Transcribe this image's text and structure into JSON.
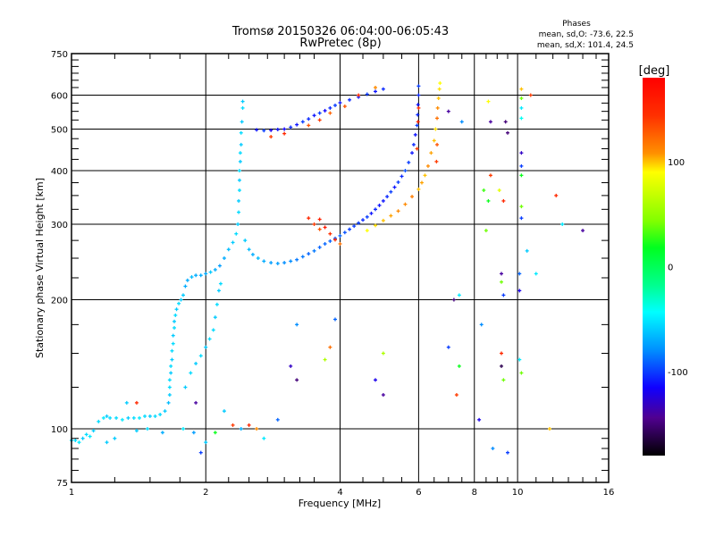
{
  "chart_data": {
    "type": "scatter",
    "title": "Tromsø 20150326 06:04:00-06:05:43",
    "subtitle": "RwPretec (8p)",
    "stats": {
      "heading": "Phases",
      "o_line": "mean, sd,O: -73.6, 22.5",
      "x_line": "mean, sd,X: 101.4, 24.5"
    },
    "xlabel": "Frequency [MHz]",
    "ylabel": "Stationary phase Virtual Height [km]",
    "xscale": "log",
    "yscale": "log",
    "xlim": [
      1,
      16
    ],
    "ylim": [
      75,
      750
    ],
    "xticks": [
      1,
      2,
      4,
      6,
      8,
      10,
      16
    ],
    "xtick_labels": [
      "1",
      "2",
      "4",
      "6",
      "8",
      "10",
      "16"
    ],
    "yticks": [
      75,
      100,
      200,
      300,
      400,
      500,
      600,
      750
    ],
    "ytick_labels": [
      "75",
      "100",
      "200",
      "300",
      "400",
      "500",
      "600",
      "750"
    ],
    "x_gridlines": [
      2,
      4,
      6,
      8,
      10
    ],
    "y_gridlines": [
      100,
      200,
      300,
      400,
      500,
      600
    ],
    "grid": true,
    "colorbar": {
      "label": "[deg]",
      "range": [
        -180,
        180
      ],
      "ticks": [
        100,
        0,
        -100
      ],
      "tick_labels": [
        "100",
        "0",
        "-100"
      ],
      "colormap": "rainbow"
    },
    "point_format": [
      "frequency_MHz",
      "height_km",
      "phase_deg"
    ],
    "points": [
      [
        1.0,
        94,
        -60
      ],
      [
        1.02,
        94,
        -55
      ],
      [
        1.04,
        93,
        -50
      ],
      [
        1.06,
        95,
        -60
      ],
      [
        1.08,
        97,
        -55
      ],
      [
        1.1,
        96,
        -50
      ],
      [
        1.12,
        99,
        -60
      ],
      [
        1.15,
        104,
        -55
      ],
      [
        1.18,
        106,
        -50
      ],
      [
        1.2,
        107,
        -60
      ],
      [
        1.22,
        106,
        -55
      ],
      [
        1.26,
        106,
        -55
      ],
      [
        1.3,
        105,
        -50
      ],
      [
        1.34,
        106,
        -60
      ],
      [
        1.38,
        106,
        -55
      ],
      [
        1.42,
        106,
        -50
      ],
      [
        1.46,
        107,
        -55
      ],
      [
        1.5,
        107,
        -60
      ],
      [
        1.54,
        107,
        -55
      ],
      [
        1.58,
        108,
        -55
      ],
      [
        1.62,
        110,
        -60
      ],
      [
        1.65,
        115,
        -65
      ],
      [
        1.66,
        120,
        -60
      ],
      [
        1.66,
        125,
        -55
      ],
      [
        1.66,
        130,
        -55
      ],
      [
        1.67,
        135,
        -60
      ],
      [
        1.67,
        140,
        -55
      ],
      [
        1.68,
        145,
        -60
      ],
      [
        1.68,
        152,
        -55
      ],
      [
        1.69,
        158,
        -55
      ],
      [
        1.69,
        165,
        -60
      ],
      [
        1.7,
        172,
        -55
      ],
      [
        1.7,
        178,
        -60
      ],
      [
        1.71,
        184,
        -55
      ],
      [
        1.72,
        190,
        -60
      ],
      [
        1.74,
        196,
        -55
      ],
      [
        1.76,
        200,
        -60
      ],
      [
        1.78,
        205,
        -60
      ],
      [
        1.8,
        215,
        -70
      ],
      [
        1.82,
        222,
        -70
      ],
      [
        1.86,
        226,
        -65
      ],
      [
        1.9,
        228,
        -70
      ],
      [
        1.95,
        228,
        -70
      ],
      [
        2.0,
        230,
        -70
      ],
      [
        2.05,
        232,
        -60
      ],
      [
        2.1,
        235,
        -70
      ],
      [
        2.15,
        240,
        -75
      ],
      [
        2.2,
        250,
        -70
      ],
      [
        2.25,
        262,
        -65
      ],
      [
        2.3,
        272,
        -60
      ],
      [
        2.34,
        285,
        -55
      ],
      [
        2.36,
        300,
        -60
      ],
      [
        2.37,
        320,
        -55
      ],
      [
        2.37,
        340,
        -60
      ],
      [
        2.38,
        360,
        -55
      ],
      [
        2.38,
        380,
        -60
      ],
      [
        2.38,
        400,
        -55
      ],
      [
        2.39,
        420,
        -60
      ],
      [
        2.39,
        440,
        -55
      ],
      [
        2.4,
        460,
        -60
      ],
      [
        2.4,
        490,
        -55
      ],
      [
        2.41,
        520,
        -60
      ],
      [
        2.42,
        560,
        -55
      ],
      [
        2.42,
        580,
        -60
      ],
      [
        1.8,
        125,
        -60
      ],
      [
        1.85,
        135,
        -55
      ],
      [
        1.9,
        142,
        -60
      ],
      [
        1.95,
        148,
        -55
      ],
      [
        2.0,
        155,
        -60
      ],
      [
        2.04,
        162,
        -55
      ],
      [
        2.08,
        170,
        -55
      ],
      [
        2.1,
        182,
        -60
      ],
      [
        2.12,
        195,
        -55
      ],
      [
        2.14,
        210,
        -60
      ],
      [
        2.16,
        218,
        -55
      ],
      [
        2.45,
        275,
        -60
      ],
      [
        2.5,
        262,
        -65
      ],
      [
        2.55,
        255,
        -70
      ],
      [
        2.62,
        250,
        -65
      ],
      [
        2.7,
        246,
        -70
      ],
      [
        2.8,
        244,
        -75
      ],
      [
        2.9,
        243,
        -75
      ],
      [
        3.0,
        244,
        -80
      ],
      [
        3.1,
        246,
        -80
      ],
      [
        3.2,
        248,
        -85
      ],
      [
        3.3,
        252,
        -85
      ],
      [
        3.4,
        256,
        -90
      ],
      [
        3.5,
        260,
        -85
      ],
      [
        3.6,
        265,
        -90
      ],
      [
        3.7,
        270,
        -90
      ],
      [
        3.8,
        274,
        -90
      ],
      [
        3.9,
        278,
        -95
      ],
      [
        4.0,
        282,
        -90
      ],
      [
        4.1,
        287,
        -95
      ],
      [
        4.2,
        292,
        -100
      ],
      [
        4.3,
        297,
        -100
      ],
      [
        4.4,
        302,
        -100
      ],
      [
        4.5,
        307,
        -105
      ],
      [
        4.6,
        312,
        -100
      ],
      [
        4.7,
        318,
        -110
      ],
      [
        4.8,
        325,
        -105
      ],
      [
        4.9,
        332,
        -110
      ],
      [
        5.0,
        340,
        -110
      ],
      [
        5.1,
        348,
        -105
      ],
      [
        5.2,
        357,
        -100
      ],
      [
        5.3,
        366,
        -110
      ],
      [
        5.4,
        376,
        -100
      ],
      [
        5.5,
        388,
        -105
      ],
      [
        5.6,
        400,
        -95
      ],
      [
        5.7,
        418,
        -100
      ],
      [
        5.8,
        440,
        -110
      ],
      [
        5.85,
        460,
        -105
      ],
      [
        5.9,
        485,
        -110
      ],
      [
        5.95,
        510,
        -100
      ],
      [
        5.97,
        540,
        -105
      ],
      [
        5.98,
        570,
        -110
      ],
      [
        6.0,
        600,
        -105
      ],
      [
        6.0,
        630,
        -100
      ],
      [
        5.95,
        450,
        140
      ],
      [
        5.98,
        520,
        150
      ],
      [
        6.0,
        560,
        145
      ],
      [
        4.6,
        290,
        90
      ],
      [
        4.8,
        298,
        95
      ],
      [
        5.0,
        306,
        100
      ],
      [
        5.2,
        314,
        105
      ],
      [
        5.4,
        322,
        110
      ],
      [
        5.6,
        334,
        110
      ],
      [
        5.8,
        348,
        115
      ],
      [
        6.0,
        362,
        100
      ],
      [
        6.1,
        375,
        105
      ],
      [
        6.2,
        390,
        100
      ],
      [
        6.3,
        410,
        110
      ],
      [
        6.4,
        440,
        105
      ],
      [
        6.5,
        470,
        100
      ],
      [
        6.55,
        500,
        95
      ],
      [
        6.6,
        530,
        120
      ],
      [
        6.62,
        560,
        110
      ],
      [
        6.65,
        590,
        100
      ],
      [
        6.68,
        620,
        95
      ],
      [
        6.7,
        640,
        90
      ],
      [
        6.6,
        460,
        130
      ],
      [
        6.58,
        420,
        140
      ],
      [
        2.6,
        498,
        -110
      ],
      [
        2.7,
        496,
        -100
      ],
      [
        2.8,
        497,
        -120
      ],
      [
        2.9,
        499,
        -110
      ],
      [
        3.0,
        500,
        -115
      ],
      [
        3.1,
        505,
        -105
      ],
      [
        3.2,
        512,
        -110
      ],
      [
        3.3,
        520,
        -100
      ],
      [
        3.4,
        528,
        -105
      ],
      [
        3.5,
        538,
        -110
      ],
      [
        3.6,
        545,
        -100
      ],
      [
        3.7,
        552,
        -115
      ],
      [
        3.8,
        560,
        -105
      ],
      [
        3.9,
        568,
        -100
      ],
      [
        4.0,
        576,
        -110
      ],
      [
        4.2,
        585,
        -105
      ],
      [
        4.4,
        594,
        -110
      ],
      [
        4.6,
        603,
        -100
      ],
      [
        4.8,
        612,
        -110
      ],
      [
        5.0,
        620,
        -105
      ],
      [
        2.8,
        480,
        140
      ],
      [
        3.0,
        488,
        150
      ],
      [
        3.4,
        510,
        130
      ],
      [
        3.6,
        525,
        140
      ],
      [
        3.8,
        545,
        125
      ],
      [
        4.1,
        565,
        130
      ],
      [
        4.4,
        600,
        150
      ],
      [
        4.8,
        625,
        110
      ],
      [
        3.4,
        310,
        150
      ],
      [
        3.5,
        300,
        140
      ],
      [
        3.6,
        292,
        130
      ],
      [
        3.8,
        285,
        145
      ],
      [
        3.9,
        276,
        150
      ],
      [
        4.0,
        270,
        120
      ],
      [
        3.6,
        308,
        155
      ],
      [
        3.7,
        295,
        160
      ],
      [
        7.0,
        550,
        -140
      ],
      [
        7.5,
        520,
        -80
      ],
      [
        8.6,
        580,
        90
      ],
      [
        8.7,
        520,
        -140
      ],
      [
        9.5,
        490,
        -150
      ],
      [
        9.4,
        520,
        -150
      ],
      [
        10.2,
        620,
        100
      ],
      [
        10.2,
        590,
        40
      ],
      [
        10.2,
        560,
        -50
      ],
      [
        10.2,
        530,
        -40
      ],
      [
        10.2,
        440,
        -130
      ],
      [
        10.2,
        410,
        -100
      ],
      [
        10.2,
        390,
        20
      ],
      [
        10.7,
        600,
        140
      ],
      [
        8.4,
        360,
        30
      ],
      [
        8.7,
        390,
        140
      ],
      [
        9.1,
        360,
        80
      ],
      [
        9.3,
        340,
        150
      ],
      [
        10.2,
        330,
        40
      ],
      [
        10.2,
        310,
        -100
      ],
      [
        12.2,
        350,
        150
      ],
      [
        12.6,
        300,
        -50
      ],
      [
        14.0,
        290,
        -140
      ],
      [
        8.5,
        290,
        40
      ],
      [
        8.6,
        340,
        20
      ],
      [
        9.2,
        230,
        -140
      ],
      [
        9.2,
        220,
        40
      ],
      [
        9.3,
        205,
        -100
      ],
      [
        10.1,
        230,
        -90
      ],
      [
        10.1,
        210,
        -120
      ],
      [
        9.2,
        150,
        150
      ],
      [
        9.2,
        140,
        -160
      ],
      [
        9.3,
        130,
        40
      ],
      [
        10.1,
        145,
        -50
      ],
      [
        10.2,
        135,
        40
      ],
      [
        7.2,
        200,
        -150
      ],
      [
        7.4,
        205,
        -50
      ],
      [
        7.0,
        155,
        -100
      ],
      [
        7.4,
        140,
        20
      ],
      [
        7.3,
        120,
        140
      ],
      [
        8.2,
        105,
        -120
      ],
      [
        8.8,
        90,
        -80
      ],
      [
        9.5,
        88,
        -100
      ],
      [
        11.8,
        100,
        100
      ],
      [
        10.5,
        260,
        -60
      ],
      [
        11.0,
        230,
        -50
      ],
      [
        8.3,
        175,
        -80
      ],
      [
        5.0,
        150,
        60
      ],
      [
        5.0,
        120,
        -140
      ],
      [
        4.8,
        130,
        -120
      ],
      [
        3.9,
        180,
        -90
      ],
      [
        3.8,
        155,
        120
      ],
      [
        3.7,
        145,
        60
      ],
      [
        3.2,
        175,
        -80
      ],
      [
        3.1,
        140,
        -130
      ],
      [
        3.2,
        130,
        -150
      ],
      [
        2.9,
        105,
        -90
      ],
      [
        2.7,
        95,
        -50
      ],
      [
        2.6,
        100,
        110
      ],
      [
        2.4,
        100,
        -70
      ],
      [
        2.3,
        102,
        140
      ],
      [
        2.0,
        93,
        -60
      ],
      [
        1.95,
        88,
        -100
      ],
      [
        1.88,
        98,
        -75
      ],
      [
        1.78,
        100,
        -50
      ],
      [
        1.6,
        98,
        -70
      ],
      [
        1.48,
        100,
        -55
      ],
      [
        1.4,
        115,
        150
      ],
      [
        1.4,
        99,
        -60
      ],
      [
        1.33,
        115,
        -60
      ],
      [
        1.25,
        95,
        -60
      ],
      [
        1.2,
        93,
        -60
      ],
      [
        1.9,
        115,
        -140
      ],
      [
        2.2,
        110,
        -60
      ],
      [
        2.5,
        102,
        150
      ],
      [
        2.1,
        98,
        20
      ]
    ]
  }
}
